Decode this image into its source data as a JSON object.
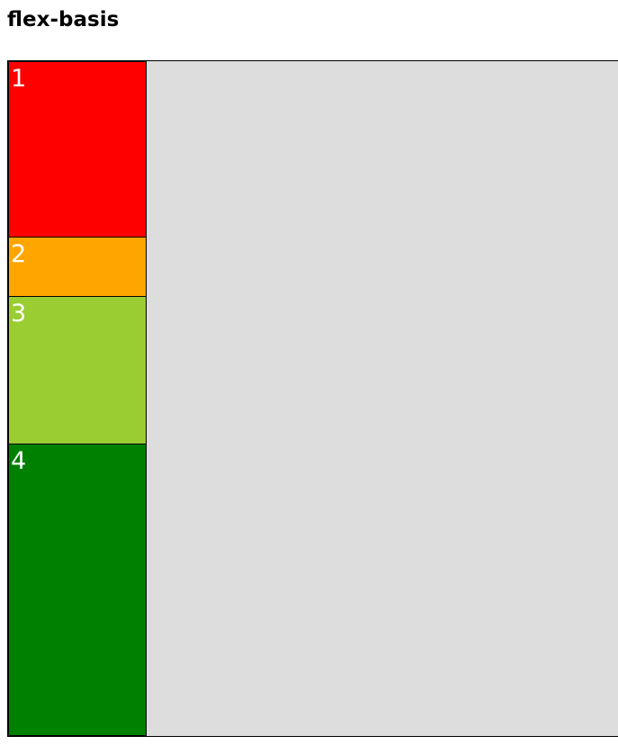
{
  "page": {
    "title": "flex-basis"
  },
  "flex_container": {
    "background": "#dddddd",
    "items": [
      {
        "label": "1",
        "color": "#ff0000"
      },
      {
        "label": "2",
        "color": "#ffa500"
      },
      {
        "label": "3",
        "color": "#9acd32"
      },
      {
        "label": "4",
        "color": "#008000"
      }
    ]
  }
}
